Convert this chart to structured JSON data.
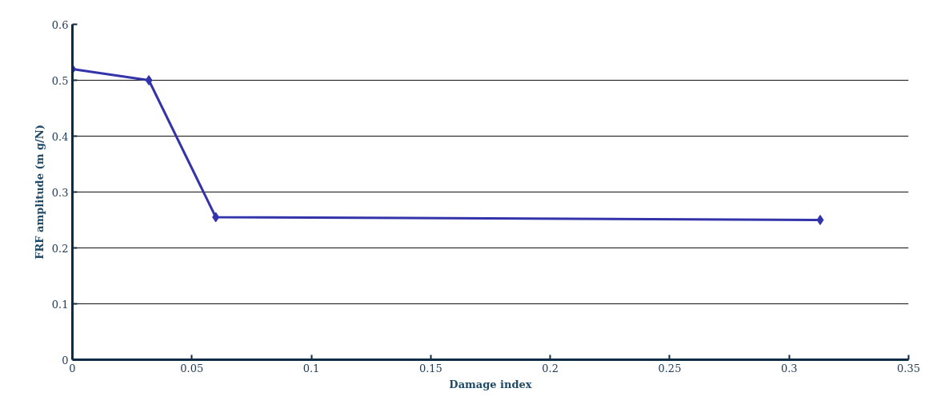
{
  "chart_data": {
    "type": "line",
    "xlabel": "Damage index",
    "ylabel": "FRF amplitude (m g/N)",
    "x": [
      0,
      0.032,
      0.06,
      0.313
    ],
    "series": [
      {
        "color": "#3333aa",
        "values": [
          0.52,
          0.5,
          0.255,
          0.25
        ]
      }
    ],
    "xlim": [
      0,
      0.35
    ],
    "xticks": [
      0,
      {
        "value": 0.05,
        "label": "0.05"
      },
      {
        "value": 0.1,
        "label": "0.1"
      },
      {
        "value": 0.15,
        "label": "0.15"
      },
      {
        "value": 0.2,
        "label": "0.2"
      },
      {
        "value": 0.25,
        "label": "0.25"
      },
      {
        "value": 0.3,
        "label": "0.3"
      },
      {
        "value": 0.35,
        "label": "0.35"
      }
    ],
    "ylim": [
      0,
      0.6
    ],
    "yticks": [
      0,
      0.1,
      0.2,
      0.3,
      0.4,
      0.5,
      0.6
    ],
    "grid": "y",
    "marker": "diamond",
    "line_style": "solid"
  }
}
